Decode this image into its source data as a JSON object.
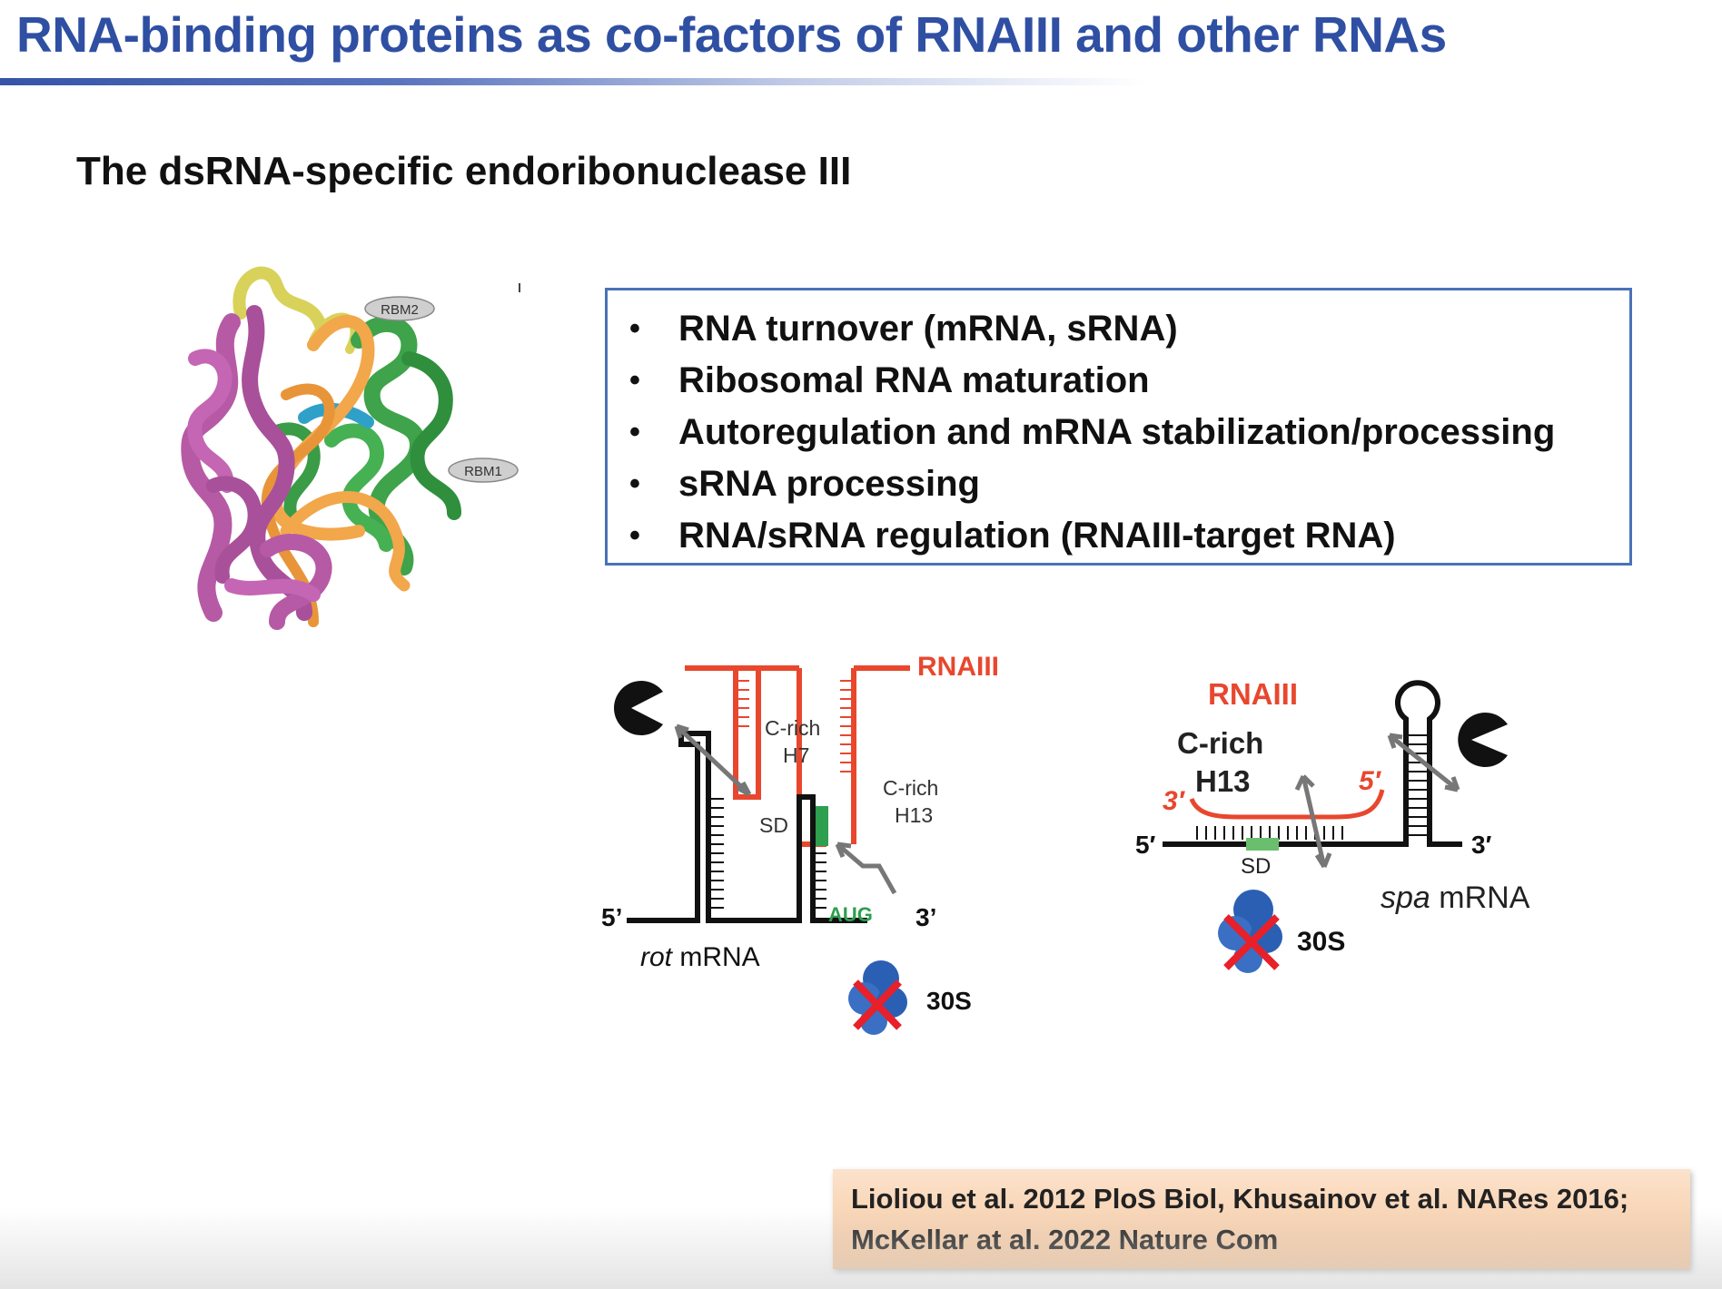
{
  "slide": {
    "title": "RNA-binding proteins as co-factors of RNAIII and other RNAs",
    "subtitle": "The dsRNA-specific endoribonuclease III"
  },
  "protein_figure": {
    "labels": {
      "rbm2": "RBM2",
      "rbm1": "RBM1"
    }
  },
  "functions_box": {
    "bullet_symbol": "•",
    "items": [
      "RNA turnover (mRNA, sRNA)",
      "Ribosomal RNA maturation",
      "Autoregulation and mRNA stabilization/processing",
      "sRNA processing",
      "RNA/sRNA regulation (RNAIII-target RNA)"
    ]
  },
  "rot_diagram": {
    "rna_label": "RNAIII",
    "hairpin1": [
      "C-rich",
      "H7"
    ],
    "hairpin2": [
      "C-rich",
      "H13"
    ],
    "sd": "SD",
    "aug": "AUG",
    "five_prime": "5’",
    "three_prime": "3’",
    "mrna_name_italic": "rot",
    "mrna_suffix": " mRNA",
    "ribosome": "30S"
  },
  "spa_diagram": {
    "rna_label": "RNAIII",
    "c_rich": "C-rich",
    "h13": "H13",
    "rna_3prime": "3′",
    "rna_5prime": "5′",
    "mrna_5prime": "5′",
    "mrna_3prime": "3′",
    "sd": "SD",
    "mrna_name_italic": "spa",
    "mrna_suffix": " mRNA",
    "ribosome": "30S"
  },
  "references": {
    "line1": "Lioliou et al. 2012 PloS Biol, Khusainov et al. NARes 2016;",
    "line2": "McKellar at al. 2022 Nature Com"
  },
  "colors": {
    "title_blue": "#2f4fa3",
    "box_border": "#4a72b6",
    "rnaiii_red": "#e8472e",
    "sd_green": "#2e9e4f",
    "ribosome_blue": "#2b5fb4",
    "cross_red": "#e8202a",
    "protein_magenta": "#b65aa6",
    "protein_green": "#3ea34a",
    "rna_orange": "#f2a74b",
    "protein_yellow": "#d8d25a"
  }
}
